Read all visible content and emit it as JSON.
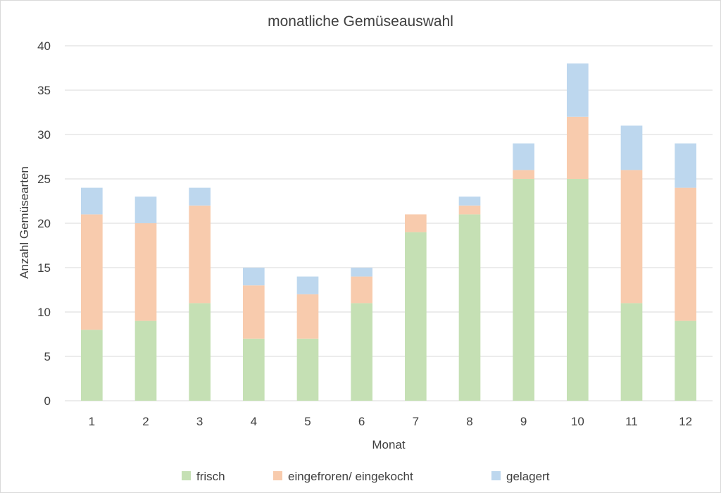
{
  "chart_data": {
    "type": "bar",
    "stacked": true,
    "title": "monatliche Gemüseauswahl",
    "xlabel": "Monat",
    "ylabel": "Anzahl Gemüsearten",
    "ylim": [
      0,
      40
    ],
    "yticks": [
      0,
      5,
      10,
      15,
      20,
      25,
      30,
      35,
      40
    ],
    "grid": true,
    "legend_position": "bottom",
    "categories": [
      "1",
      "2",
      "3",
      "4",
      "5",
      "6",
      "7",
      "8",
      "9",
      "10",
      "11",
      "12"
    ],
    "series": [
      {
        "name": "frisch",
        "color": "#c5e0b4",
        "values": [
          8,
          9,
          11,
          7,
          7,
          11,
          19,
          21,
          25,
          25,
          11,
          9
        ]
      },
      {
        "name": "eingefroren/ eingekocht",
        "color": "#f8cbad",
        "values": [
          13,
          11,
          11,
          6,
          5,
          3,
          2,
          1,
          1,
          7,
          15,
          15
        ]
      },
      {
        "name": "gelagert",
        "color": "#bdd7ee",
        "values": [
          3,
          3,
          2,
          2,
          2,
          1,
          0,
          1,
          3,
          6,
          5,
          5
        ]
      }
    ]
  }
}
